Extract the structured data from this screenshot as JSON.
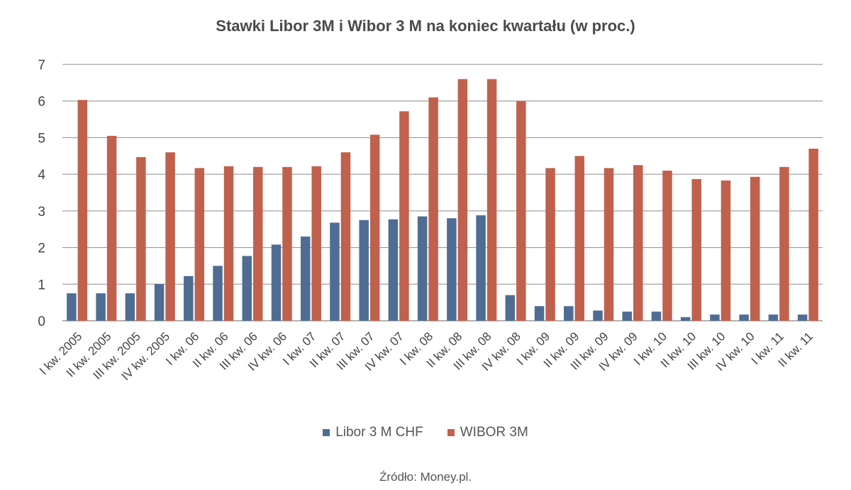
{
  "chart_data": {
    "type": "bar",
    "title": "Stawki Libor 3M i Wibor 3 M na koniec kwartału (w proc.)",
    "categories": [
      "I kw. 2005",
      "II kw. 2005",
      "III kw. 2005",
      "IV kw. 2005",
      "I kw. 06",
      "II kw. 06",
      "III kw. 06",
      "IV kw. 06",
      "I kw. 07",
      "II kw. 07",
      "III kw. 07",
      "IV kw. 07",
      "I kw. 08",
      "II kw. 08",
      "III kw. 08",
      "IV kw. 08",
      "I kw. 09",
      "II kw. 09",
      "III kw. 09",
      "IV kw. 09",
      "I kw. 10",
      "II kw. 10",
      "III kw. 10",
      "IV kw. 10",
      "I kw. 11",
      "II kw. 11"
    ],
    "series": [
      {
        "name": "Libor 3 M CHF",
        "color": "#4f6d93",
        "values": [
          0.75,
          0.75,
          0.75,
          1.0,
          1.22,
          1.5,
          1.77,
          2.08,
          2.3,
          2.68,
          2.75,
          2.77,
          2.85,
          2.8,
          2.88,
          0.7,
          0.4,
          0.4,
          0.28,
          0.25,
          0.25,
          0.1,
          0.17,
          0.17,
          0.17,
          0.17
        ]
      },
      {
        "name": "WIBOR 3M",
        "color": "#c0614d",
        "values": [
          6.03,
          5.05,
          4.47,
          4.6,
          4.17,
          4.22,
          4.2,
          4.2,
          4.22,
          4.6,
          5.08,
          5.72,
          6.1,
          6.6,
          6.6,
          6.0,
          4.17,
          4.5,
          4.17,
          4.25,
          4.1,
          3.87,
          3.83,
          3.93,
          4.2,
          4.7
        ]
      }
    ],
    "ylim": [
      0,
      7
    ],
    "yticks": [
      0,
      1,
      2,
      3,
      4,
      5,
      6,
      7
    ],
    "grid": true,
    "legend_position": "bottom-center"
  },
  "source": "Źródło: Money.pl."
}
